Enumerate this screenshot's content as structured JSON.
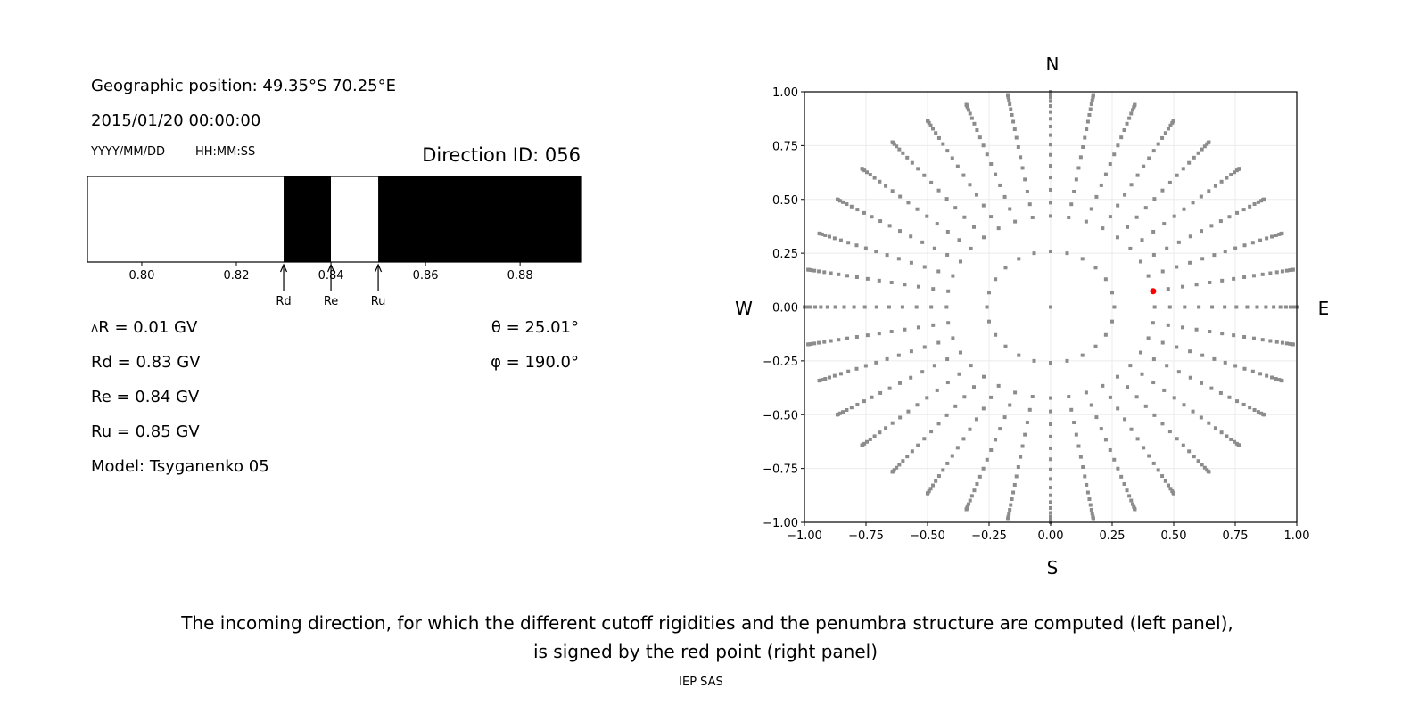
{
  "left_panel": {
    "geo_position": "Geographic position: 49.35°S 70.25°E",
    "datetime": "2015/01/20 00:00:00",
    "date_format": "YYYY/MM/DD",
    "time_format": "HH:MM:SS",
    "direction_id": "Direction ID: 056",
    "delta_r_symbol": "Δ",
    "delta_r": "R = 0.01 GV",
    "rd": "Rd = 0.83 GV",
    "re": "Re = 0.84 GV",
    "ru": "Ru = 0.85 GV",
    "model": "Model: Tsyganenko 05",
    "theta": "θ = 25.01°",
    "phi": "φ = 190.0°"
  },
  "chart_data": [
    {
      "type": "bar",
      "subtype": "penumbra-structure",
      "xlim": [
        0.7885,
        0.8928
      ],
      "xticks": [
        "0.80",
        "0.82",
        "0.84",
        "0.86",
        "0.88"
      ],
      "xtick_values": [
        0.8,
        0.82,
        0.84,
        0.86,
        0.88
      ],
      "segments": [
        {
          "from": 0.7885,
          "to": 0.83,
          "state": "allowed",
          "color": "#ffffff"
        },
        {
          "from": 0.83,
          "to": 0.84,
          "state": "forbidden",
          "color": "#000000"
        },
        {
          "from": 0.84,
          "to": 0.85,
          "state": "allowed",
          "color": "#ffffff"
        },
        {
          "from": 0.85,
          "to": 0.8928,
          "state": "forbidden",
          "color": "#000000"
        }
      ],
      "markers": [
        {
          "label": "Rd",
          "value": 0.83
        },
        {
          "label": "Re",
          "value": 0.84
        },
        {
          "label": "Ru",
          "value": 0.85
        }
      ]
    },
    {
      "type": "scatter",
      "xlim": [
        -1,
        1
      ],
      "ylim": [
        -1,
        1
      ],
      "grid": true,
      "xticks": [
        "−1.00",
        "−0.75",
        "−0.50",
        "−0.25",
        "0.00",
        "0.25",
        "0.50",
        "0.75",
        "1.00"
      ],
      "yticks": [
        "−1.00",
        "−0.75",
        "−0.50",
        "−0.25",
        "0.00",
        "0.25",
        "0.50",
        "0.75",
        "1.00"
      ],
      "tick_values": [
        -1,
        -0.75,
        -0.5,
        -0.25,
        0,
        0.25,
        0.5,
        0.75,
        1
      ],
      "direction_labels": {
        "north": "N",
        "south": "S",
        "west": "W",
        "east": "E"
      },
      "point_color": "#8c8c8c",
      "highlight_color": "#ff0000",
      "direction_grid": [
        {
          "zenith_deg": [
            0
          ],
          "azimuth_step_deg": 360
        },
        {
          "zenith_deg": [
            15
          ],
          "azimuth_step_deg": 15
        },
        {
          "zenith_deg": [
            25,
            29,
            33,
            37,
            41,
            45,
            49,
            53,
            57,
            61,
            65,
            69,
            73,
            77,
            81,
            85,
            89,
            90
          ],
          "azimuth_step_deg": 10
        }
      ],
      "highlight": {
        "zenith_deg": 25.01,
        "azimuth_deg": 190.0
      }
    }
  ],
  "caption": {
    "line1": "The incoming direction, for which the different cutoff rigidities and the penumbra structure are computed (left panel),",
    "line2": "is signed by the red point (right panel)"
  },
  "footer": "IEP SAS"
}
